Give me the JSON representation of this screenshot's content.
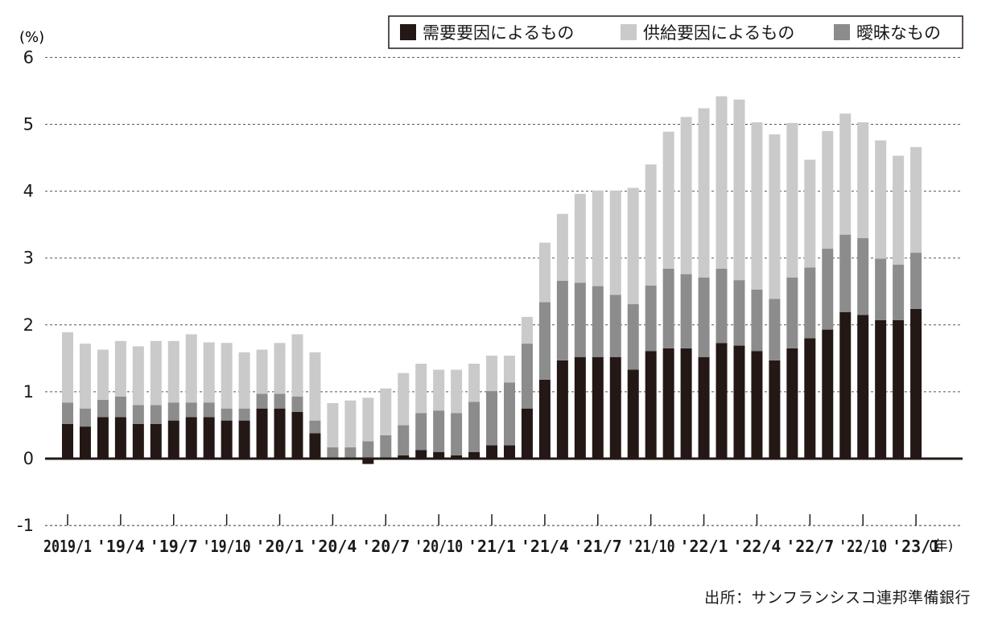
{
  "chart_data": {
    "type": "bar",
    "stacked": true,
    "title": "",
    "ylabel_unit": "(%)",
    "xunit": "(年)",
    "ylim": [
      -1,
      6
    ],
    "yticks": [
      -1,
      0,
      1,
      2,
      3,
      4,
      5,
      6
    ],
    "grid": "horizontal dashed",
    "legend_position": "top-right",
    "xtick_labels": [
      {
        "index": 0,
        "label": "2019/1"
      },
      {
        "index": 3,
        "label": "'19/4"
      },
      {
        "index": 6,
        "label": "'19/7"
      },
      {
        "index": 9,
        "label": "'19/10"
      },
      {
        "index": 12,
        "label": "'20/1"
      },
      {
        "index": 15,
        "label": "'20/4"
      },
      {
        "index": 18,
        "label": "'20/7"
      },
      {
        "index": 21,
        "label": "'20/10"
      },
      {
        "index": 24,
        "label": "'21/1"
      },
      {
        "index": 27,
        "label": "'21/4"
      },
      {
        "index": 30,
        "label": "'21/7"
      },
      {
        "index": 33,
        "label": "'21/10"
      },
      {
        "index": 36,
        "label": "'22/1"
      },
      {
        "index": 39,
        "label": "'22/4"
      },
      {
        "index": 42,
        "label": "'22/7"
      },
      {
        "index": 45,
        "label": "'22/10"
      },
      {
        "index": 48,
        "label": "'23/1"
      }
    ],
    "series": [
      {
        "name": "需要要因によるもの",
        "color": "#231815",
        "values": [
          0.52,
          0.48,
          0.62,
          0.62,
          0.52,
          0.52,
          0.57,
          0.62,
          0.62,
          0.57,
          0.57,
          0.75,
          0.75,
          0.7,
          0.38,
          0.0,
          0.0,
          -0.08,
          0.0,
          0.05,
          0.13,
          0.1,
          0.05,
          0.1,
          0.2,
          0.2,
          0.75,
          1.18,
          1.47,
          1.52,
          1.52,
          1.52,
          1.33,
          1.61,
          1.65,
          1.65,
          1.52,
          1.73,
          1.69,
          1.61,
          1.47,
          1.65,
          1.8,
          1.93,
          2.19,
          2.15,
          2.07,
          2.07,
          2.24
        ]
      },
      {
        "name": "曖昧なもの",
        "color": "#8c8c8c",
        "values": [
          0.32,
          0.27,
          0.26,
          0.31,
          0.28,
          0.28,
          0.27,
          0.22,
          0.22,
          0.18,
          0.18,
          0.22,
          0.22,
          0.23,
          0.19,
          0.17,
          0.17,
          0.26,
          0.35,
          0.45,
          0.55,
          0.62,
          0.63,
          0.75,
          0.81,
          0.94,
          0.97,
          1.16,
          1.19,
          1.11,
          1.06,
          0.93,
          0.98,
          0.98,
          1.19,
          1.11,
          1.19,
          1.11,
          0.98,
          0.92,
          0.92,
          1.06,
          1.06,
          1.21,
          1.16,
          1.15,
          0.92,
          0.83,
          0.84
        ]
      },
      {
        "name": "供給要因によるもの",
        "color": "#cacaca",
        "values": [
          1.05,
          0.97,
          0.75,
          0.83,
          0.88,
          0.96,
          0.92,
          1.02,
          0.9,
          0.98,
          0.84,
          0.66,
          0.76,
          0.93,
          1.02,
          0.66,
          0.7,
          0.65,
          0.7,
          0.78,
          0.74,
          0.61,
          0.65,
          0.57,
          0.53,
          0.4,
          0.4,
          0.89,
          1.0,
          1.33,
          1.43,
          1.56,
          1.74,
          1.81,
          2.05,
          2.35,
          2.53,
          2.58,
          2.7,
          2.5,
          2.46,
          2.31,
          1.61,
          1.76,
          1.81,
          1.73,
          1.77,
          1.63,
          1.58
        ]
      }
    ],
    "legend_order": [
      "需要要因によるもの",
      "供給要因によるもの",
      "曖昧なもの"
    ]
  },
  "source_text": "出所：サンフランシスコ連邦準備銀行"
}
